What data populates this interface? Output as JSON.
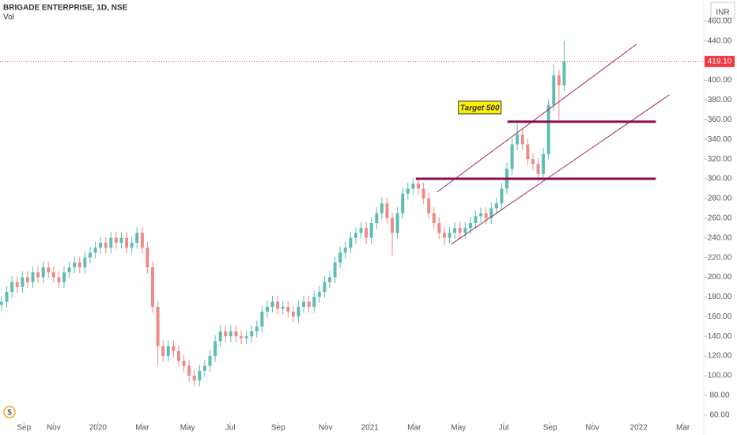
{
  "chart_data": {
    "type": "candlestick",
    "title": "BRIGADE ENTERPRISE, 1D, NSE",
    "subtitle": "Vol",
    "currency": "INR",
    "up_color": "#5cbdb0",
    "down_color": "#ee8a87",
    "x": [
      0,
      1,
      2,
      3,
      4,
      5,
      6,
      7,
      8,
      9,
      10,
      11,
      12,
      13,
      14,
      15,
      16,
      17,
      18,
      19,
      20,
      21,
      22,
      23,
      24,
      25,
      26,
      27,
      28,
      29,
      30,
      31,
      32,
      33,
      34,
      35,
      36,
      37,
      38,
      39,
      40,
      41,
      42,
      43,
      44,
      45,
      46,
      47,
      48,
      49,
      50,
      51,
      52,
      53,
      54,
      55,
      56,
      57,
      58,
      59,
      60,
      61,
      62,
      63,
      64,
      65,
      66,
      67,
      68,
      69,
      70,
      71,
      72,
      73,
      74,
      75,
      76,
      77,
      78,
      79,
      80,
      81,
      82,
      83,
      84,
      85,
      86,
      87,
      88,
      89,
      90,
      91,
      92,
      93,
      94,
      95,
      96,
      97,
      98,
      99,
      100,
      101,
      102,
      103,
      104,
      105,
      106,
      107,
      108
    ],
    "open": [
      172,
      175,
      185,
      195,
      190,
      200,
      195,
      205,
      200,
      210,
      205,
      200,
      195,
      205,
      210,
      215,
      210,
      220,
      225,
      230,
      235,
      230,
      240,
      235,
      240,
      230,
      235,
      245,
      230,
      210,
      170,
      130,
      120,
      130,
      125,
      115,
      110,
      100,
      95,
      105,
      110,
      120,
      135,
      145,
      140,
      145,
      140,
      138,
      140,
      145,
      150,
      165,
      170,
      175,
      168,
      170,
      165,
      160,
      170,
      175,
      170,
      180,
      185,
      195,
      200,
      215,
      225,
      230,
      240,
      245,
      250,
      240,
      255,
      265,
      275,
      260,
      245,
      265,
      285,
      290,
      295,
      290,
      280,
      265,
      255,
      245,
      240,
      245,
      250,
      245,
      250,
      255,
      262,
      265,
      260,
      270,
      275,
      290,
      310,
      335,
      345,
      335,
      320,
      315,
      305,
      325,
      375,
      405,
      395
    ],
    "high": [
      181,
      191,
      201,
      201,
      206,
      206,
      211,
      211,
      216,
      216,
      211,
      206,
      211,
      216,
      221,
      221,
      226,
      231,
      236,
      241,
      241,
      246,
      246,
      246,
      246,
      241,
      251,
      251,
      236,
      216,
      176,
      136,
      136,
      136,
      131,
      121,
      116,
      106,
      111,
      116,
      126,
      141,
      151,
      151,
      151,
      151,
      146,
      146,
      151,
      156,
      171,
      176,
      181,
      181,
      176,
      176,
      171,
      176,
      181,
      181,
      186,
      191,
      201,
      206,
      221,
      231,
      236,
      246,
      251,
      256,
      256,
      261,
      271,
      281,
      281,
      266,
      271,
      291,
      296,
      301,
      301,
      296,
      286,
      271,
      261,
      251,
      251,
      256,
      256,
      256,
      261,
      268,
      271,
      271,
      276,
      281,
      296,
      316,
      341,
      356,
      351,
      341,
      326,
      321,
      331,
      381,
      416,
      411,
      440
    ],
    "low": [
      166,
      169,
      179,
      184,
      184,
      189,
      189,
      194,
      194,
      199,
      194,
      189,
      189,
      199,
      204,
      204,
      204,
      214,
      219,
      224,
      224,
      224,
      229,
      229,
      224,
      224,
      229,
      224,
      204,
      164,
      110,
      114,
      114,
      119,
      109,
      104,
      94,
      89,
      89,
      99,
      104,
      114,
      129,
      134,
      134,
      134,
      132,
      132,
      134,
      139,
      144,
      159,
      164,
      162,
      162,
      159,
      154,
      154,
      164,
      164,
      164,
      174,
      179,
      189,
      194,
      209,
      219,
      224,
      234,
      239,
      234,
      234,
      249,
      259,
      254,
      222,
      239,
      259,
      279,
      284,
      284,
      274,
      259,
      249,
      239,
      232,
      234,
      239,
      239,
      239,
      244,
      249,
      256,
      254,
      254,
      264,
      269,
      284,
      304,
      329,
      329,
      314,
      309,
      297,
      299,
      319,
      369,
      360,
      389
    ],
    "close": [
      175,
      185,
      195,
      190,
      200,
      195,
      205,
      200,
      210,
      205,
      200,
      195,
      205,
      210,
      215,
      210,
      220,
      225,
      230,
      235,
      230,
      240,
      235,
      240,
      230,
      235,
      245,
      230,
      210,
      170,
      130,
      120,
      130,
      125,
      115,
      110,
      100,
      95,
      105,
      110,
      120,
      135,
      145,
      140,
      145,
      140,
      138,
      140,
      145,
      150,
      165,
      170,
      175,
      168,
      170,
      165,
      160,
      170,
      175,
      170,
      180,
      185,
      195,
      200,
      215,
      225,
      230,
      240,
      245,
      250,
      240,
      255,
      265,
      275,
      260,
      245,
      265,
      285,
      290,
      295,
      290,
      280,
      265,
      255,
      245,
      240,
      245,
      250,
      245,
      250,
      255,
      262,
      265,
      260,
      270,
      275,
      290,
      310,
      335,
      345,
      335,
      320,
      315,
      305,
      325,
      375,
      405,
      395,
      419.1
    ],
    "xlim": [
      -0.3,
      134.8
    ],
    "xticks": [
      {
        "value": 4.3,
        "label": "Sep"
      },
      {
        "value": 10.0,
        "label": "Nov"
      },
      {
        "value": 18.5,
        "label": "2020"
      },
      {
        "value": 27.0,
        "label": "Mar"
      },
      {
        "value": 35.7,
        "label": "May"
      },
      {
        "value": 43.9,
        "label": "Jul"
      },
      {
        "value": 53.1,
        "label": "Sep"
      },
      {
        "value": 62.2,
        "label": "Nov"
      },
      {
        "value": 70.7,
        "label": "2021"
      },
      {
        "value": 79.2,
        "label": "Mar"
      },
      {
        "value": 87.7,
        "label": "May"
      },
      {
        "value": 96.4,
        "label": "Jul"
      },
      {
        "value": 105.3,
        "label": "Sep"
      },
      {
        "value": 113.4,
        "label": "Nov"
      },
      {
        "value": 122.3,
        "label": "2022"
      },
      {
        "value": 130.8,
        "label": "Mar"
      }
    ],
    "ylim": [
      55,
      480
    ],
    "yticks": [
      {
        "value": 60,
        "label": "60.00"
      },
      {
        "value": 80,
        "label": "80.00"
      },
      {
        "value": 100,
        "label": "100.00"
      },
      {
        "value": 120,
        "label": "120.00"
      },
      {
        "value": 140,
        "label": "140.00"
      },
      {
        "value": 160,
        "label": "160.00"
      },
      {
        "value": 180,
        "label": "180.00"
      },
      {
        "value": 200,
        "label": "200.00"
      },
      {
        "value": 220,
        "label": "220.00"
      },
      {
        "value": 240,
        "label": "240.00"
      },
      {
        "value": 260,
        "label": "260.00"
      },
      {
        "value": 280,
        "label": "280.00"
      },
      {
        "value": 300,
        "label": "300.00"
      },
      {
        "value": 320,
        "label": "320.00"
      },
      {
        "value": 340,
        "label": "340.00"
      },
      {
        "value": 360,
        "label": "360.00"
      },
      {
        "value": 380,
        "label": "380.00"
      },
      {
        "value": 400,
        "label": "400.00"
      },
      {
        "value": 420,
        "label": "420.00"
      },
      {
        "value": 440,
        "label": "440.00"
      },
      {
        "value": 460,
        "label": "460.00"
      }
    ],
    "last_price": {
      "value": 419.1,
      "label": "419.10",
      "color": "#f23645"
    },
    "lines": [
      {
        "x": [
          83.6,
          121.9
        ],
        "y": [
          286.5,
          436.7
        ],
        "color": "#a0285f",
        "width": 1
      },
      {
        "x": [
          86.3,
          128.2
        ],
        "y": [
          233.5,
          385.3
        ],
        "color": "#a0285f",
        "width": 1
      },
      {
        "x": [
          79.5,
          125.6
        ],
        "y": [
          300,
          300
        ],
        "color": "#880e4f",
        "width": 3
      },
      {
        "x": [
          97.1,
          125.6
        ],
        "y": [
          358,
          358
        ],
        "color": "#880e4f",
        "width": 3
      }
    ],
    "annotations": [
      {
        "text": "Target 500",
        "x": 91.8,
        "y": 372.4
      }
    ]
  }
}
